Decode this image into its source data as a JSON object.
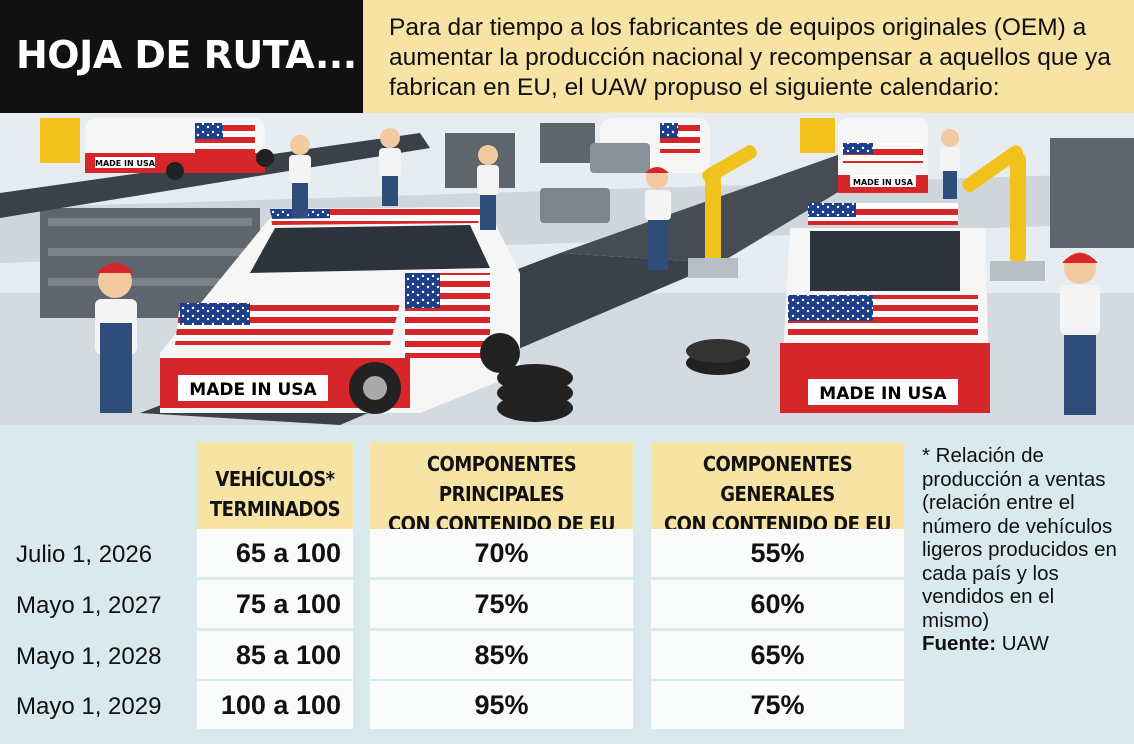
{
  "header": {
    "title": "HOJA DE RUTA...",
    "intro": "Para dar tiempo a los fabricantes de equipos originales (OEM) a aumentar la producción nacional y recompensar a aquellos que ya fabrican en EU, el UAW propuso el siguiente calendario:"
  },
  "illustration": {
    "car_plates": [
      "MADE IN USA",
      "MADE IN USA",
      "MADE IN USA",
      "MADE IN USA"
    ],
    "colors": {
      "car_red": "#d7262a",
      "car_white": "#f6f6f6",
      "robot_yellow": "#f1c21c",
      "worker_blue": "#2f4d7a",
      "floor": "#c9d1d8"
    }
  },
  "table": {
    "columns": [
      "VEHÍCULOS*\nTERMINADOS",
      "COMPONENTES PRINCIPALES\nCON CONTENIDO DE EU",
      "COMPONENTES GENERALES\nCON CONTENIDO DE EU"
    ],
    "rows": [
      {
        "date": "Julio 1, 2026",
        "vehicles": "65 a 100",
        "principal": "70%",
        "general": "55%"
      },
      {
        "date": "Mayo 1, 2027",
        "vehicles": "75 a 100",
        "principal": "75%",
        "general": "60%"
      },
      {
        "date": "Mayo 1, 2028",
        "vehicles": "85 a 100",
        "principal": "85%",
        "general": "65%"
      },
      {
        "date": "Mayo 1, 2029",
        "vehicles": "100 a 100",
        "principal": "95%",
        "general": "75%"
      }
    ]
  },
  "footnote": {
    "text": "* Relación de producción a ventas (relación entre el número de vehículos ligeros producidos en cada país y los vendidos en el mismo)",
    "source_label": "Fuente:",
    "source_value": " UAW"
  },
  "colors": {
    "title_bg": "#111111",
    "highlight": "#f7e3a3",
    "panel_bg": "#d9e9ee",
    "cell_bg": "#fafcfc"
  }
}
